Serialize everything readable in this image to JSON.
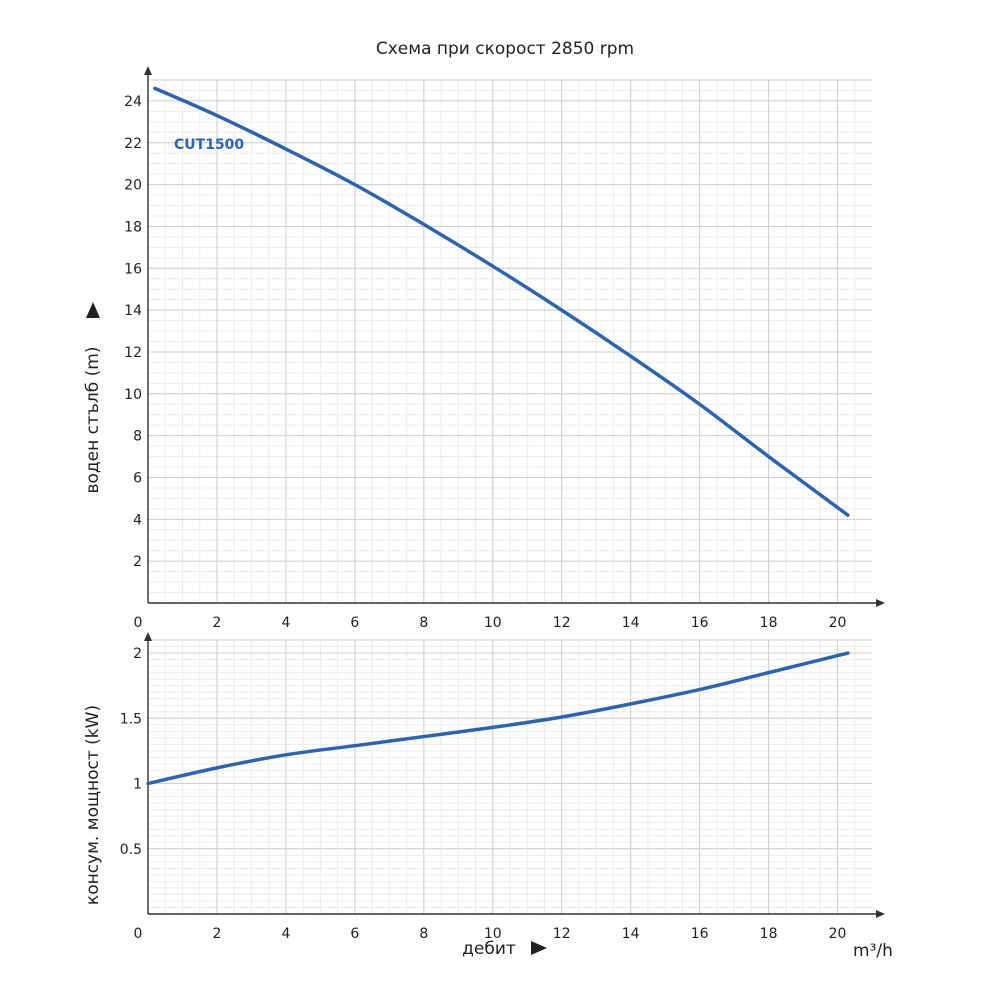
{
  "title": "Схема при скорост 2850 rpm",
  "colors": {
    "curve": "#2e63b0",
    "grid_major": "#cfcfcf",
    "grid_minor": "#ececec",
    "axis": "#333333"
  },
  "chart_data": [
    {
      "type": "line",
      "xlabel": "",
      "ylabel": "воден стълб (m)",
      "xlim": [
        0,
        21
      ],
      "ylim": [
        0,
        25
      ],
      "xticks": [
        0,
        2,
        4,
        6,
        8,
        10,
        12,
        14,
        16,
        18,
        20
      ],
      "yticks": [
        2,
        4,
        6,
        8,
        10,
        12,
        14,
        16,
        18,
        20,
        22,
        24
      ],
      "grid": true,
      "series": [
        {
          "name": "CUT1500",
          "x": [
            0.2,
            2,
            4,
            6,
            8,
            10,
            12,
            14,
            16,
            18,
            20.3
          ],
          "y": [
            24.6,
            23.3,
            21.7,
            20.0,
            18.1,
            16.1,
            14.0,
            11.8,
            9.5,
            7.0,
            4.2
          ]
        }
      ]
    },
    {
      "type": "line",
      "xlabel": "дебит",
      "x_unit": "m³/h",
      "ylabel": "консум. мощност (kW)",
      "xlim": [
        0,
        21
      ],
      "ylim": [
        0,
        2.1
      ],
      "xticks": [
        0,
        2,
        4,
        6,
        8,
        10,
        12,
        14,
        16,
        18,
        20
      ],
      "yticks": [
        0.5,
        1,
        1.5,
        2
      ],
      "grid": true,
      "series": [
        {
          "x": [
            0,
            2,
            4,
            6,
            8,
            10,
            12,
            14,
            16,
            18,
            20.3
          ],
          "y": [
            1.0,
            1.12,
            1.22,
            1.29,
            1.36,
            1.43,
            1.51,
            1.61,
            1.72,
            1.85,
            2.0
          ]
        }
      ]
    }
  ]
}
